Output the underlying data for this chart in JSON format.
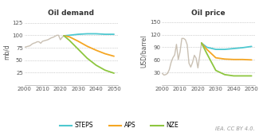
{
  "title_demand": "Oil demand",
  "title_price": "Oil price",
  "ylabel_demand": "mb/d",
  "ylabel_price": "USD/barrel",
  "credit": "IEA. CC BY 4.0.",
  "demand_ylim": [
    0,
    135
  ],
  "demand_yticks": [
    25,
    50,
    75,
    100,
    125
  ],
  "price_ylim": [
    0,
    160
  ],
  "price_yticks": [
    30,
    60,
    90,
    120,
    150
  ],
  "xlim": [
    2000,
    2052
  ],
  "xticks": [
    2000,
    2010,
    2020,
    2030,
    2040,
    2050
  ],
  "color_hist": "#c9c0b3",
  "color_steps": "#4ec8d0",
  "color_aps": "#f5a623",
  "color_nze": "#8dc63f",
  "legend_labels": [
    "STEPS",
    "APS",
    "NZE"
  ],
  "demand_hist_x": [
    2000,
    2001,
    2002,
    2003,
    2004,
    2005,
    2006,
    2007,
    2008,
    2009,
    2010,
    2011,
    2012,
    2013,
    2014,
    2015,
    2016,
    2017,
    2018,
    2019,
    2020,
    2021,
    2022
  ],
  "demand_hist_y": [
    76,
    77,
    78,
    79,
    82,
    84,
    85,
    87,
    87,
    84,
    88,
    89,
    90,
    91,
    93,
    95,
    96,
    98,
    100,
    100,
    91,
    96,
    99
  ],
  "demand_steps_x": [
    2022,
    2025,
    2030,
    2035,
    2040,
    2045,
    2050
  ],
  "demand_steps_y": [
    99,
    100,
    102,
    103,
    103,
    102,
    102
  ],
  "demand_aps_x": [
    2022,
    2025,
    2030,
    2035,
    2040,
    2045,
    2050
  ],
  "demand_aps_y": [
    99,
    97,
    88,
    78,
    70,
    63,
    58
  ],
  "demand_nze_x": [
    2022,
    2025,
    2030,
    2035,
    2040,
    2045,
    2050
  ],
  "demand_nze_y": [
    99,
    90,
    72,
    54,
    40,
    30,
    24
  ],
  "price_hist_x": [
    2000,
    2001,
    2002,
    2003,
    2004,
    2005,
    2006,
    2007,
    2008,
    2009,
    2010,
    2011,
    2012,
    2013,
    2014,
    2015,
    2016,
    2017,
    2018,
    2019,
    2020,
    2021,
    2022
  ],
  "price_hist_y": [
    28,
    24,
    25,
    28,
    37,
    54,
    65,
    72,
    97,
    61,
    79,
    111,
    111,
    108,
    96,
    52,
    43,
    54,
    71,
    64,
    41,
    70,
    100
  ],
  "price_steps_x": [
    2022,
    2025,
    2030,
    2035,
    2040,
    2045,
    2050
  ],
  "price_steps_y": [
    100,
    90,
    85,
    85,
    87,
    89,
    92
  ],
  "price_aps_x": [
    2022,
    2025,
    2030,
    2035,
    2040,
    2045,
    2050
  ],
  "price_aps_y": [
    100,
    85,
    65,
    62,
    61,
    61,
    60
  ],
  "price_nze_x": [
    2022,
    2025,
    2030,
    2035,
    2040,
    2045,
    2050
  ],
  "price_nze_y": [
    100,
    75,
    35,
    25,
    22,
    22,
    22
  ]
}
